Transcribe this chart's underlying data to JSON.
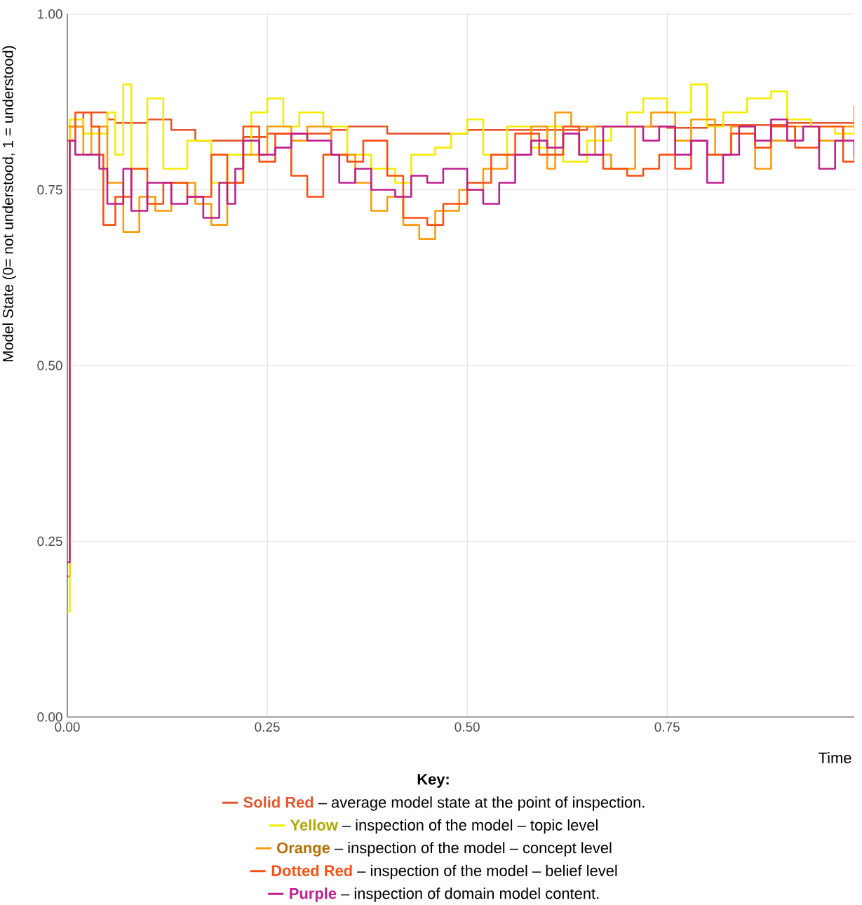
{
  "chart_data": {
    "type": "step",
    "ylabel": "Model State (0= not understood, 1 = understood)",
    "xlabel": "Time",
    "legend_title": "Key:",
    "legend": "bottom",
    "grid": true,
    "marker": "none",
    "xlim": [
      0,
      0.984
    ],
    "ylim": [
      0,
      1
    ],
    "xticks": [
      {
        "value": 0,
        "label": "0.00"
      },
      {
        "value": 0.25,
        "label": "0.25"
      },
      {
        "value": 0.5,
        "label": "0.50"
      },
      {
        "value": 0.75,
        "label": "0.75"
      }
    ],
    "yticks": [
      {
        "value": 0,
        "label": "0.00"
      },
      {
        "value": 0.25,
        "label": "0.25"
      },
      {
        "value": 0.5,
        "label": "0.50"
      },
      {
        "value": 0.75,
        "label": "0.75"
      },
      {
        "value": 1,
        "label": "1.00"
      }
    ],
    "annotations": [
      "– average model state at the point of inspection.",
      "– inspection of the model – topic level",
      "– inspection of the model – concept level",
      "– inspection of the model – belief level",
      "– inspection of domain model content."
    ],
    "series": [
      {
        "name": "Solid Red",
        "color": "#e4572e",
        "x": [
          0,
          0.003,
          0.02,
          0.05,
          0.06,
          0.09,
          0.1,
          0.13,
          0.16,
          0.2,
          0.22,
          0.25,
          0.3,
          0.33,
          0.35,
          0.4,
          0.45,
          0.5,
          0.6,
          0.65,
          0.7,
          0.75,
          0.8,
          0.9,
          0.984
        ],
        "values": [
          0.2,
          0.84,
          0.86,
          0.85,
          0.845,
          0.845,
          0.85,
          0.835,
          0.82,
          0.82,
          0.825,
          0.83,
          0.83,
          0.835,
          0.84,
          0.83,
          0.83,
          0.835,
          0.835,
          0.84,
          0.84,
          0.838,
          0.842,
          0.845,
          0.85
        ]
      },
      {
        "name": "Yellow",
        "color": "#f5ec00",
        "x": [
          0,
          0.003,
          0.02,
          0.05,
          0.06,
          0.07,
          0.08,
          0.1,
          0.12,
          0.15,
          0.18,
          0.2,
          0.23,
          0.25,
          0.27,
          0.29,
          0.32,
          0.35,
          0.38,
          0.41,
          0.43,
          0.46,
          0.48,
          0.5,
          0.52,
          0.55,
          0.58,
          0.6,
          0.62,
          0.65,
          0.68,
          0.7,
          0.72,
          0.75,
          0.78,
          0.8,
          0.82,
          0.85,
          0.88,
          0.9,
          0.93,
          0.96,
          0.984
        ],
        "values": [
          0.15,
          0.85,
          0.83,
          0.86,
          0.8,
          0.9,
          0.78,
          0.88,
          0.78,
          0.82,
          0.76,
          0.8,
          0.86,
          0.88,
          0.84,
          0.86,
          0.84,
          0.8,
          0.78,
          0.76,
          0.8,
          0.81,
          0.83,
          0.85,
          0.8,
          0.84,
          0.81,
          0.84,
          0.79,
          0.82,
          0.84,
          0.86,
          0.88,
          0.86,
          0.9,
          0.84,
          0.86,
          0.88,
          0.89,
          0.85,
          0.84,
          0.83,
          0.85
        ]
      },
      {
        "name": "Orange",
        "color": "#ff9a0a",
        "x": [
          0,
          0.02,
          0.03,
          0.05,
          0.07,
          0.09,
          0.11,
          0.13,
          0.16,
          0.18,
          0.2,
          0.22,
          0.25,
          0.28,
          0.3,
          0.33,
          0.36,
          0.38,
          0.4,
          0.42,
          0.44,
          0.46,
          0.49,
          0.52,
          0.55,
          0.58,
          0.6,
          0.61,
          0.63,
          0.66,
          0.68,
          0.71,
          0.73,
          0.76,
          0.78,
          0.81,
          0.83,
          0.86,
          0.88,
          0.91,
          0.94,
          0.97,
          0.984
        ],
        "values": [
          0.84,
          0.8,
          0.84,
          0.76,
          0.69,
          0.74,
          0.72,
          0.76,
          0.73,
          0.7,
          0.76,
          0.8,
          0.84,
          0.82,
          0.84,
          0.8,
          0.76,
          0.72,
          0.74,
          0.7,
          0.68,
          0.72,
          0.75,
          0.78,
          0.8,
          0.84,
          0.78,
          0.86,
          0.84,
          0.8,
          0.78,
          0.84,
          0.86,
          0.82,
          0.85,
          0.8,
          0.84,
          0.78,
          0.82,
          0.84,
          0.82,
          0.84,
          0.87
        ]
      },
      {
        "name": "Dotted Red",
        "color": "#ff4f12",
        "x": [
          0,
          0.01,
          0.03,
          0.04,
          0.045,
          0.06,
          0.08,
          0.1,
          0.12,
          0.15,
          0.18,
          0.2,
          0.22,
          0.24,
          0.26,
          0.28,
          0.3,
          0.32,
          0.35,
          0.37,
          0.4,
          0.42,
          0.45,
          0.47,
          0.5,
          0.53,
          0.56,
          0.59,
          0.62,
          0.64,
          0.67,
          0.7,
          0.72,
          0.74,
          0.76,
          0.78,
          0.8,
          0.83,
          0.86,
          0.88,
          0.91,
          0.94,
          0.97,
          0.984
        ],
        "values": [
          0.82,
          0.86,
          0.84,
          0.8,
          0.7,
          0.74,
          0.78,
          0.73,
          0.76,
          0.74,
          0.8,
          0.76,
          0.84,
          0.79,
          0.83,
          0.77,
          0.74,
          0.8,
          0.79,
          0.82,
          0.77,
          0.71,
          0.7,
          0.73,
          0.76,
          0.8,
          0.83,
          0.8,
          0.84,
          0.8,
          0.78,
          0.77,
          0.78,
          0.8,
          0.78,
          0.82,
          0.8,
          0.83,
          0.81,
          0.84,
          0.81,
          0.84,
          0.79,
          0.8
        ]
      },
      {
        "name": "Purple",
        "color": "#c0208e",
        "x": [
          0,
          0.003,
          0.01,
          0.03,
          0.04,
          0.05,
          0.07,
          0.08,
          0.1,
          0.13,
          0.15,
          0.17,
          0.19,
          0.2,
          0.21,
          0.22,
          0.24,
          0.26,
          0.28,
          0.3,
          0.33,
          0.34,
          0.36,
          0.38,
          0.41,
          0.43,
          0.45,
          0.47,
          0.5,
          0.52,
          0.54,
          0.56,
          0.58,
          0.6,
          0.62,
          0.64,
          0.67,
          0.7,
          0.72,
          0.74,
          0.76,
          0.78,
          0.8,
          0.82,
          0.84,
          0.86,
          0.88,
          0.9,
          0.92,
          0.94,
          0.96,
          0.984
        ],
        "values": [
          0.22,
          0.82,
          0.8,
          0.8,
          0.78,
          0.73,
          0.78,
          0.72,
          0.76,
          0.73,
          0.74,
          0.71,
          0.76,
          0.73,
          0.78,
          0.82,
          0.8,
          0.81,
          0.83,
          0.82,
          0.8,
          0.76,
          0.78,
          0.75,
          0.74,
          0.77,
          0.76,
          0.78,
          0.75,
          0.73,
          0.76,
          0.8,
          0.82,
          0.81,
          0.83,
          0.8,
          0.84,
          0.84,
          0.82,
          0.84,
          0.8,
          0.82,
          0.76,
          0.8,
          0.84,
          0.82,
          0.85,
          0.82,
          0.84,
          0.78,
          0.82,
          0.8
        ]
      }
    ]
  }
}
